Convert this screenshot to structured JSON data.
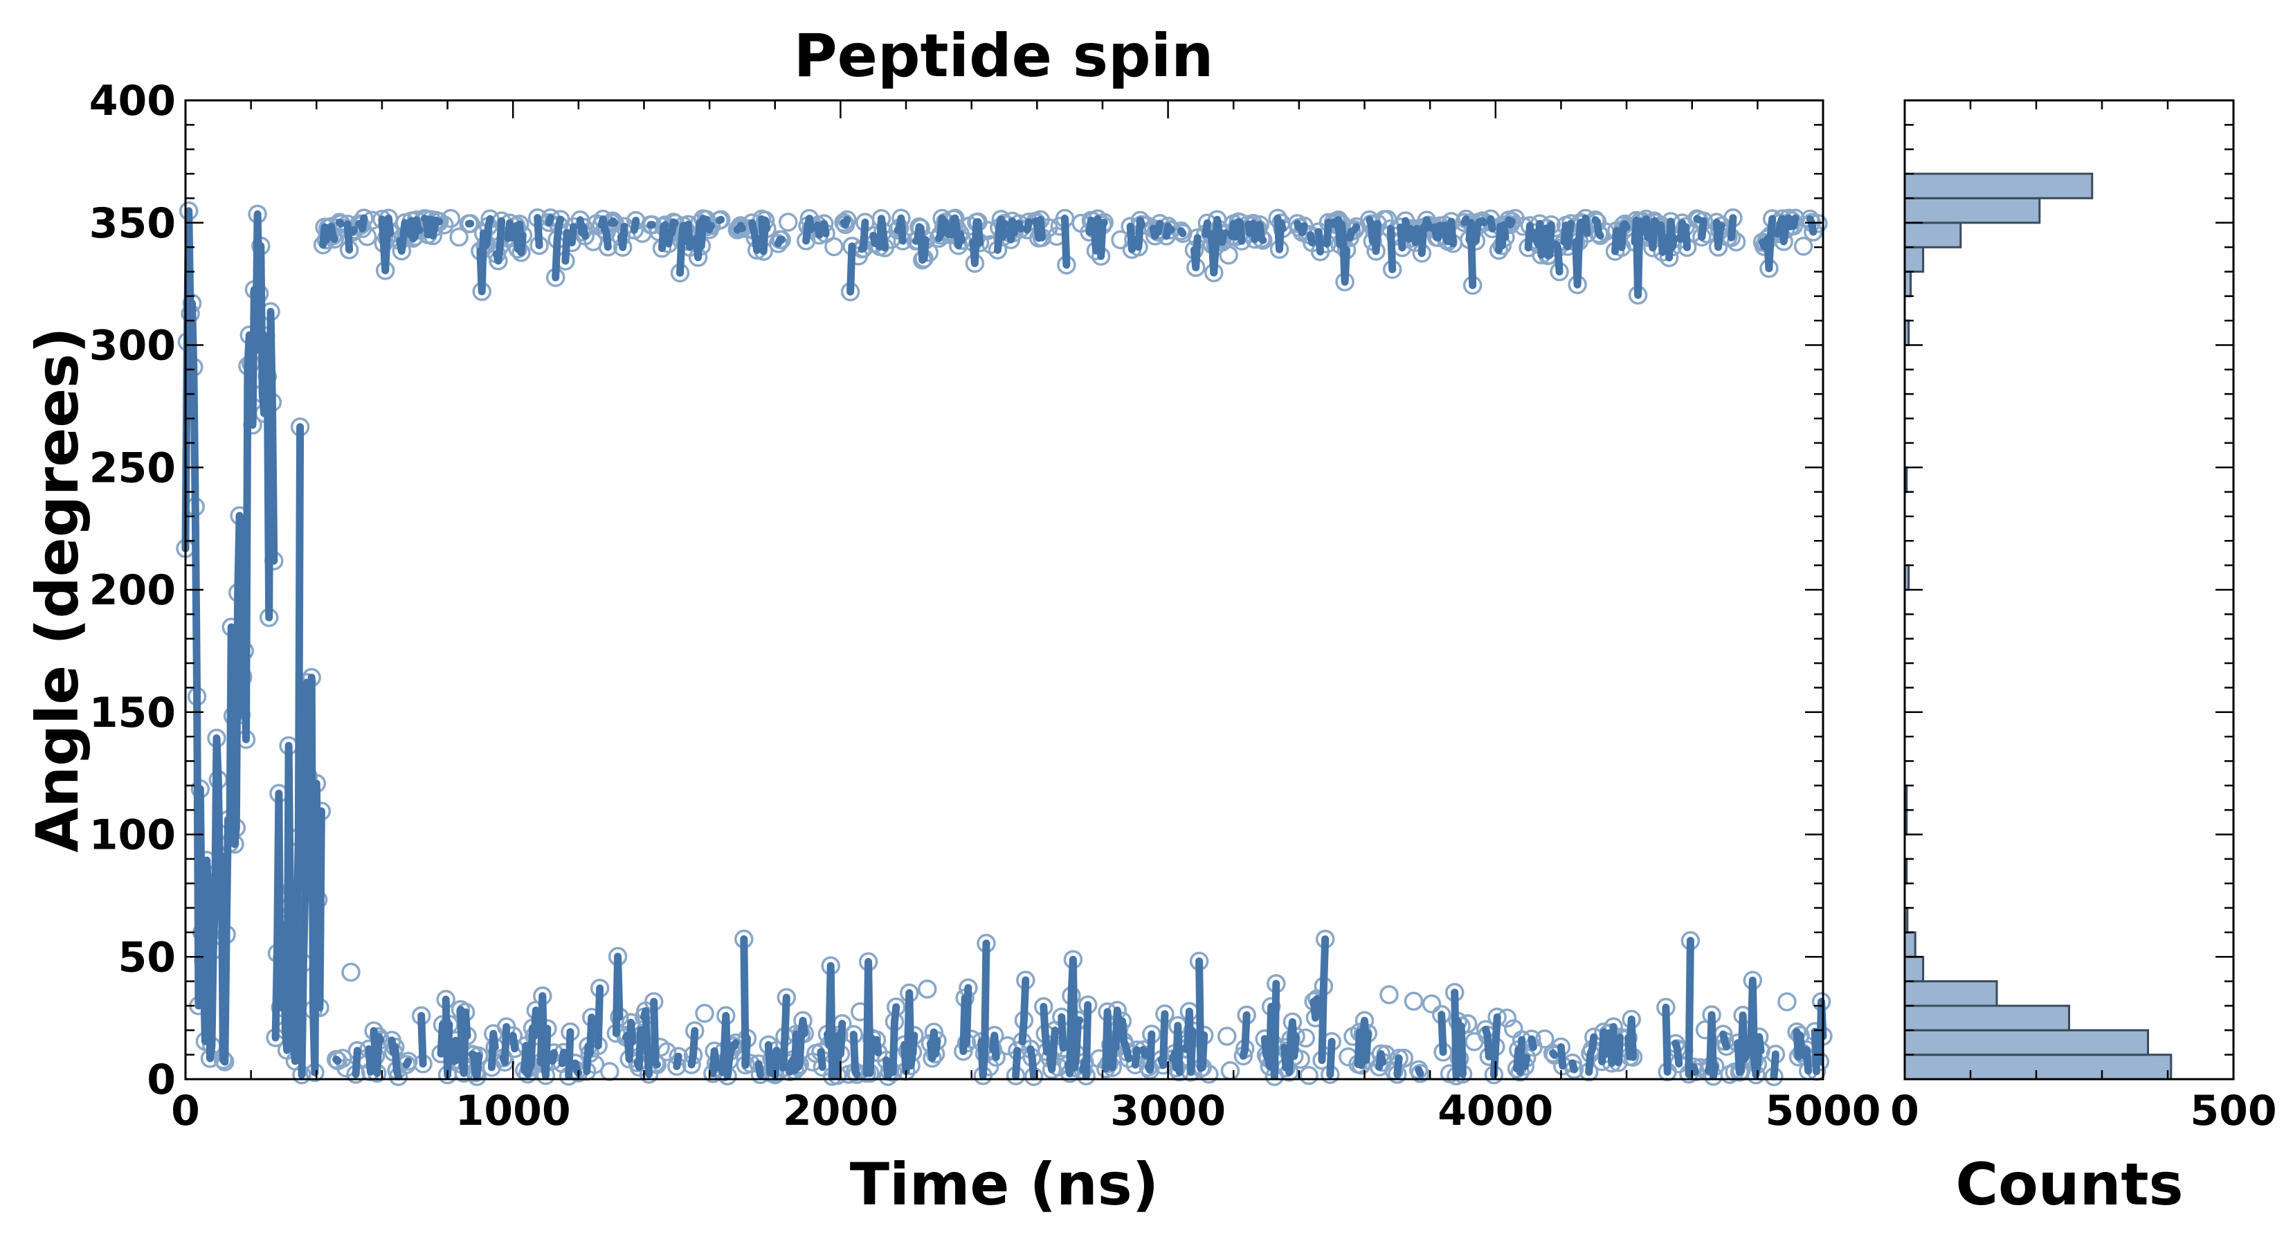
{
  "colors": {
    "trace": "#4474a8",
    "marker": "#89a7c8",
    "hist_fill": "#9ab4d1",
    "hist_edge": "#3a4a5c"
  },
  "chart_data": [
    {
      "type": "scatter",
      "title": "Peptide spin",
      "xlabel": "Time (ns)",
      "ylabel": "Angle (degrees)",
      "xlim": [
        0,
        5000
      ],
      "ylim": [
        0,
        400
      ],
      "xticks": [
        "0",
        "1000",
        "2000",
        "3000",
        "4000",
        "5000"
      ],
      "yticks": [
        "0",
        "50",
        "100",
        "150",
        "200",
        "250",
        "300",
        "350",
        "400"
      ],
      "series": [
        {
          "name": "angle trace",
          "description_phases": [
            {
              "t_start": 0,
              "t_end": 420,
              "angle_range": [
                0,
                355
              ],
              "note": "rapid transitions across full range"
            },
            {
              "t_start": 420,
              "t_end": 5000,
              "band_low": [
                0,
                45
              ],
              "band_high": [
                320,
                360
              ],
              "note": "toggling between low and high basins"
            }
          ]
        }
      ]
    },
    {
      "type": "bar",
      "orientation": "horizontal",
      "xlabel": "Counts",
      "xlim": [
        0,
        500
      ],
      "xticks": [
        "0",
        "500"
      ],
      "bin_width_degrees": 10,
      "bins": [
        {
          "lo": 0,
          "hi": 10,
          "count": 405
        },
        {
          "lo": 10,
          "hi": 20,
          "count": 370
        },
        {
          "lo": 20,
          "hi": 30,
          "count": 250
        },
        {
          "lo": 30,
          "hi": 40,
          "count": 140
        },
        {
          "lo": 40,
          "hi": 50,
          "count": 28
        },
        {
          "lo": 50,
          "hi": 60,
          "count": 16
        },
        {
          "lo": 60,
          "hi": 70,
          "count": 4
        },
        {
          "lo": 80,
          "hi": 90,
          "count": 3
        },
        {
          "lo": 100,
          "hi": 110,
          "count": 3
        },
        {
          "lo": 110,
          "hi": 120,
          "count": 3
        },
        {
          "lo": 200,
          "hi": 210,
          "count": 6
        },
        {
          "lo": 240,
          "hi": 250,
          "count": 3
        },
        {
          "lo": 300,
          "hi": 310,
          "count": 6
        },
        {
          "lo": 320,
          "hi": 330,
          "count": 9
        },
        {
          "lo": 330,
          "hi": 340,
          "count": 28
        },
        {
          "lo": 340,
          "hi": 350,
          "count": 85
        },
        {
          "lo": 350,
          "hi": 360,
          "count": 205
        },
        {
          "lo": 360,
          "hi": 370,
          "count": 285
        }
      ]
    }
  ]
}
